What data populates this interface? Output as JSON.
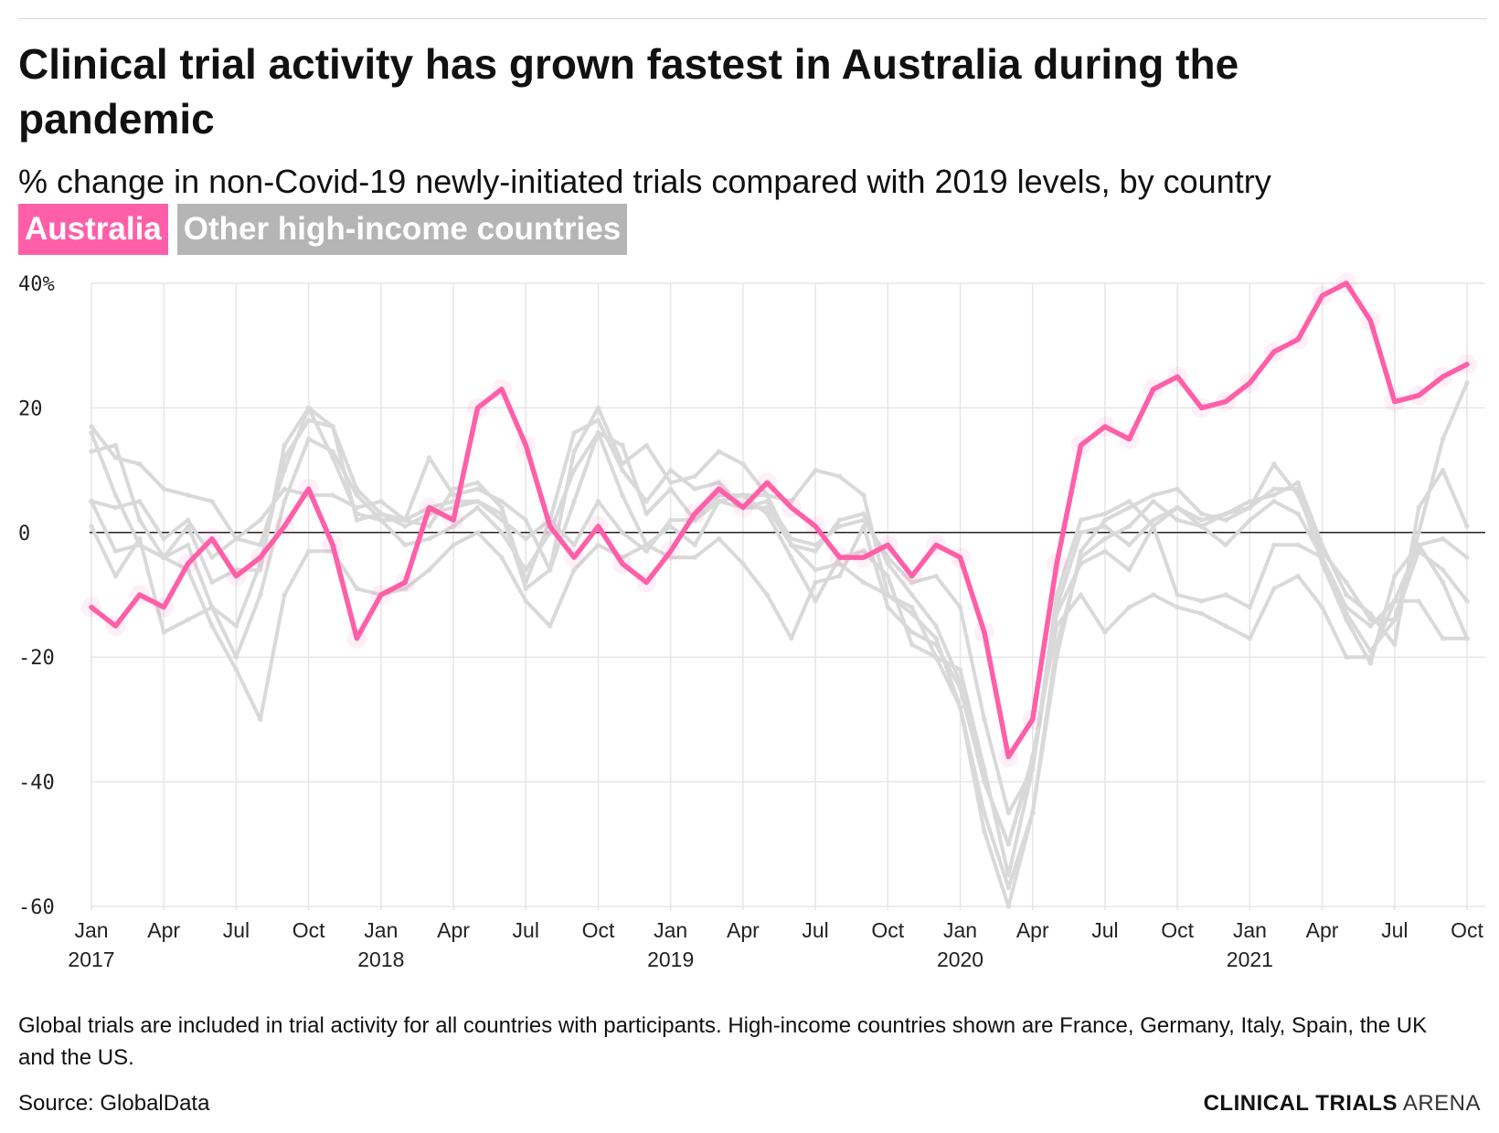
{
  "title": "Clinical trial activity has grown fastest in Australia during the pandemic",
  "subtitle": "% change in non-Covid-19 newly-initiated trials compared with 2019 levels, by country",
  "legend": [
    {
      "label": "Australia",
      "color": "#ff5fa8"
    },
    {
      "label": "Other high-income countries",
      "color": "#b5b5b5"
    }
  ],
  "footnote": "Global trials are included in trial activity for all countries with participants. High-income countries shown are France, Germany, Italy, Spain, the UK and the US.",
  "source": "Source: GlobalData",
  "brand": {
    "strong": "CLINICAL TRIALS",
    "light": "ARENA"
  },
  "chart_data": {
    "type": "line",
    "x_start": "2017-01",
    "x_end": "2021-10",
    "ylim": [
      -60,
      40
    ],
    "y_ticks": [
      -60,
      -40,
      -20,
      0,
      20,
      40
    ],
    "y_tick_labels": [
      "-60",
      "-40",
      "-20",
      "0",
      "20",
      "40%"
    ],
    "x_ticks": [
      {
        "month": "Jan",
        "year": "2017"
      },
      {
        "month": "Apr",
        "year": ""
      },
      {
        "month": "Jul",
        "year": ""
      },
      {
        "month": "Oct",
        "year": ""
      },
      {
        "month": "Jan",
        "year": "2018"
      },
      {
        "month": "Apr",
        "year": ""
      },
      {
        "month": "Jul",
        "year": ""
      },
      {
        "month": "Oct",
        "year": ""
      },
      {
        "month": "Jan",
        "year": "2019"
      },
      {
        "month": "Apr",
        "year": ""
      },
      {
        "month": "Jul",
        "year": ""
      },
      {
        "month": "Oct",
        "year": ""
      },
      {
        "month": "Jan",
        "year": "2020"
      },
      {
        "month": "Apr",
        "year": ""
      },
      {
        "month": "Jul",
        "year": ""
      },
      {
        "month": "Oct",
        "year": ""
      },
      {
        "month": "Jan",
        "year": "2021"
      },
      {
        "month": "Apr",
        "year": ""
      },
      {
        "month": "Jul",
        "year": ""
      },
      {
        "month": "Oct",
        "year": ""
      }
    ],
    "grid": true,
    "zero_line": true,
    "highlight_color": "#ff5fa8",
    "other_color": "#d9d9d9",
    "highlight": {
      "name": "Australia",
      "values": [
        -12,
        -15,
        -10,
        -12,
        -5,
        -1,
        -7,
        -4,
        1,
        7,
        -2,
        -17,
        -10,
        -8,
        4,
        2,
        20,
        23,
        14,
        1,
        -4,
        1,
        -5,
        -8,
        -3,
        3,
        7,
        4,
        8,
        4,
        1,
        -4,
        -4,
        -2,
        -7,
        -2,
        -4,
        -16,
        -36,
        -30,
        -5,
        14,
        17,
        15,
        23,
        25,
        20,
        21,
        24,
        29,
        31,
        38,
        40,
        34,
        21,
        22,
        25,
        27
      ]
    },
    "others": [
      {
        "values": [
          17,
          12,
          11,
          7,
          6,
          5,
          -1,
          -2,
          10,
          20,
          17,
          7,
          3,
          2,
          12,
          6,
          7,
          5,
          2,
          -6,
          13,
          20,
          11,
          14,
          8,
          9,
          13,
          11,
          6,
          5,
          10,
          9,
          6,
          -10,
          -12,
          -20,
          -28,
          -45,
          -57,
          -45,
          -20,
          -3,
          2,
          4,
          6,
          7,
          3,
          2,
          4,
          11,
          6,
          -3,
          -8,
          -14,
          -14,
          0,
          15,
          24
        ]
      },
      {
        "values": [
          5,
          4,
          5,
          -1,
          2,
          -4,
          -1,
          2,
          7,
          6,
          6,
          4,
          5,
          2,
          4,
          5,
          5,
          2,
          -1,
          2,
          -2,
          5,
          0,
          -3,
          2,
          2,
          5,
          4,
          5,
          -1,
          -2,
          1,
          2,
          -4,
          -8,
          -7,
          -12,
          -30,
          -45,
          -38,
          -10,
          2,
          3,
          5,
          1,
          -10,
          -11,
          -10,
          -12,
          -2,
          -2,
          -4,
          -12,
          -15,
          -11,
          -2,
          -8,
          -17
        ]
      },
      {
        "values": [
          13,
          14,
          2,
          -4,
          1,
          -8,
          -6,
          -6,
          14,
          20,
          12,
          3,
          2,
          2,
          1,
          7,
          8,
          4,
          -8,
          2,
          16,
          18,
          10,
          5,
          10,
          7,
          8,
          4,
          4,
          -2,
          -3,
          2,
          3,
          -5,
          -10,
          -15,
          -24,
          -40,
          -50,
          -37,
          -12,
          0,
          1,
          -2,
          2,
          4,
          2,
          3,
          5,
          6,
          8,
          -2,
          -10,
          -13,
          -18,
          4,
          10,
          1
        ]
      },
      {
        "values": [
          16,
          6,
          -2,
          -4,
          -2,
          -12,
          -15,
          -5,
          12,
          18,
          17,
          2,
          3,
          1,
          3,
          4,
          5,
          3,
          -9,
          -6,
          5,
          16,
          14,
          3,
          7,
          2,
          6,
          6,
          6,
          -2,
          -6,
          -5,
          -8,
          -10,
          -13,
          -17,
          -28,
          -48,
          -60,
          -45,
          -18,
          -4,
          -1,
          1,
          5,
          2,
          1,
          3,
          4,
          7,
          7,
          -5,
          -14,
          -21,
          -7,
          -2,
          -1,
          -4
        ]
      },
      {
        "values": [
          1,
          -7,
          -1,
          -16,
          -14,
          -12,
          -20,
          -10,
          5,
          15,
          13,
          6,
          2,
          -2,
          -1,
          1,
          4,
          0,
          -6,
          0,
          10,
          16,
          6,
          -2,
          1,
          -2,
          5,
          6,
          3,
          -4,
          -11,
          -4,
          -3,
          -7,
          -18,
          -20,
          -22,
          -38,
          -55,
          -38,
          -13,
          -5,
          -3,
          -6,
          1,
          4,
          1,
          -2,
          2,
          5,
          3,
          -4,
          -13,
          -19,
          -14,
          -3,
          -6,
          -11
        ]
      },
      {
        "values": [
          5,
          -3,
          -2,
          -4,
          -6,
          -15,
          -22,
          -30,
          -10,
          -3,
          -3,
          -9,
          -10,
          -9,
          -6,
          -2,
          0,
          -4,
          -11,
          -15,
          -6,
          -2,
          -4,
          -2,
          -4,
          -4,
          -1,
          -5,
          -10,
          -17,
          -8,
          -7,
          1,
          -12,
          -16,
          -18,
          -25,
          -40,
          -50,
          -36,
          -15,
          -10,
          -16,
          -12,
          -10,
          -12,
          -13,
          -15,
          -17,
          -9,
          -7,
          -12,
          -20,
          -20,
          -11,
          -11,
          -17,
          -17
        ]
      }
    ]
  }
}
